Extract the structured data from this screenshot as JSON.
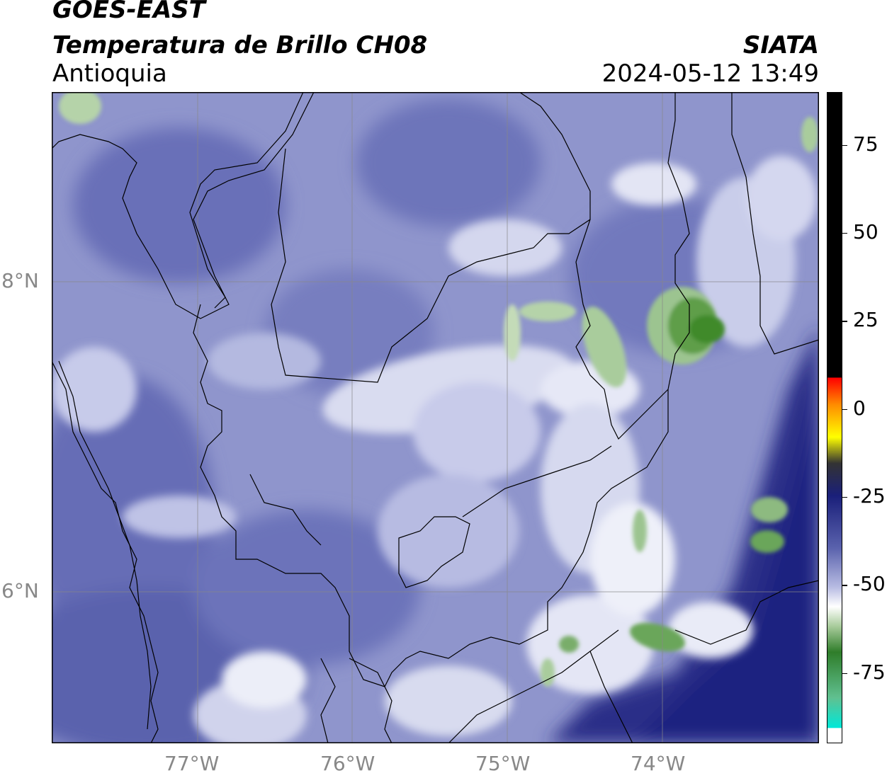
{
  "header": {
    "satellite": "GOES-EAST",
    "product": "Temperatura de Brillo CH08",
    "region": "Antioquia",
    "agency": "SIATA",
    "datetime": "2024-05-12 13:49"
  },
  "map": {
    "lon_range": [
      -77.95,
      -73.0
    ],
    "lat_range": [
      5.05,
      9.25
    ],
    "lon_ticks": [
      "77°W",
      "76°W",
      "75°W",
      "74°W"
    ],
    "lat_ticks": [
      "8°N",
      "6°N"
    ],
    "grid": true,
    "background_level": "-40 to -55 °C (blue / lavender)",
    "colors": {
      "dark_navy": "#1a1f7a",
      "blue": "#5a62ad",
      "lavender": "#9aa0d2",
      "pale": "#d5d8ee",
      "white": "#ffffff",
      "green": "#3f8a2c",
      "light_green": "#9cc490"
    }
  },
  "colorbar": {
    "ticks": [
      "75",
      "50",
      "25",
      "0",
      "-25",
      "-50",
      "-75"
    ],
    "tick_values": [
      75,
      50,
      25,
      0,
      -25,
      -50,
      -75
    ],
    "range": [
      -95,
      90
    ],
    "unit_note": ""
  }
}
